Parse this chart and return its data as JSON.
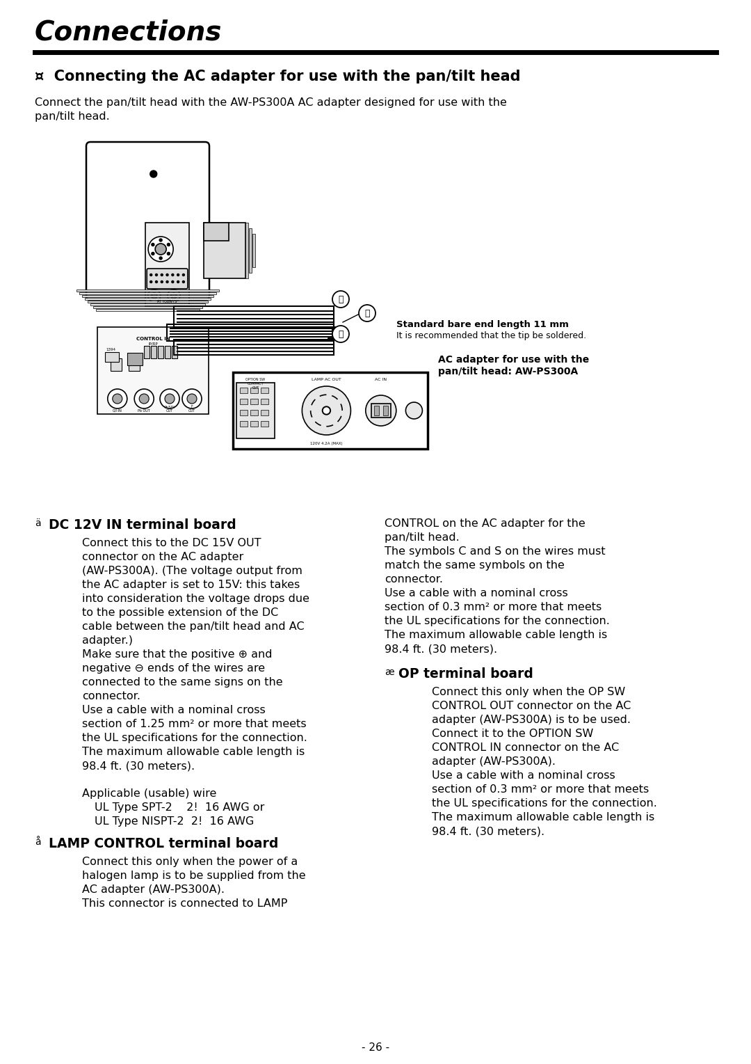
{
  "title": "Connections",
  "section_title": "¤  Connecting the AC adapter for use with the pan/tilt head",
  "intro_line1": "Connect the pan/tilt head with the AW-PS300A AC adapter designed for use with the",
  "intro_line2": "pan/tilt head.",
  "bg_color": "#ffffff",
  "text_color": "#000000",
  "page_number": "- 26 -",
  "diagram_note1": "Standard bare end length 11 mm",
  "diagram_note2": "It is recommended that the tip be soldered.",
  "diagram_note3": "AC adapter for use with the",
  "diagram_note4": "pan/tilt head: AW-PS300A",
  "s14_num": "ä",
  "s14_header": "DC 12V IN terminal board",
  "s14_body": [
    "Connect this to the DC 15V OUT",
    "connector on the AC adapter",
    "(AW-PS300A). (The voltage output from",
    "the AC adapter is set to 15V: this takes",
    "into consideration the voltage drops due",
    "to the possible extension of the DC",
    "cable between the pan/tilt head and AC",
    "adapter.)",
    "Make sure that the positive ⊕ and",
    "negative ⊖ ends of the wires are",
    "connected to the same signs on the",
    "connector.",
    "Use a cable with a nominal cross",
    "section of 1.25 mm² or more that meets",
    "the UL specifications for the connection.",
    "The maximum allowable cable length is",
    "98.4 ft. (30 meters).",
    "",
    "Applicable (usable) wire",
    "   UL Type SPT-2    2!  16 AWG or",
    "   UL Type NISPT-2  2!  16 AWG"
  ],
  "s15_num": "å",
  "s15_header": "LAMP CONTROL terminal board",
  "s15_body": [
    "Connect this only when the power of a",
    "halogen lamp is to be supplied from the",
    "AC adapter (AW-PS300A).",
    "This connector is connected to LAMP"
  ],
  "right_top_body": [
    "CONTROL on the AC adapter for the",
    "pan/tilt head.",
    "The symbols C and S on the wires must",
    "match the same symbols on the",
    "connector.",
    "Use a cable with a nominal cross",
    "section of 0.3 mm² or more that meets",
    "the UL specifications for the connection.",
    "The maximum allowable cable length is",
    "98.4 ft. (30 meters)."
  ],
  "s16_num": "æ",
  "s16_header": "OP terminal board",
  "s16_body": [
    "Connect this only when the OP SW",
    "CONTROL OUT connector on the AC",
    "adapter (AW-PS300A) is to be used.",
    "Connect it to the OPTION SW",
    "CONTROL IN connector on the AC",
    "adapter (AW-PS300A).",
    "Use a cable with a nominal cross",
    "section of 0.3 mm² or more that meets",
    "the UL specifications for the connection.",
    "The maximum allowable cable length is",
    "98.4 ft. (30 meters)."
  ]
}
